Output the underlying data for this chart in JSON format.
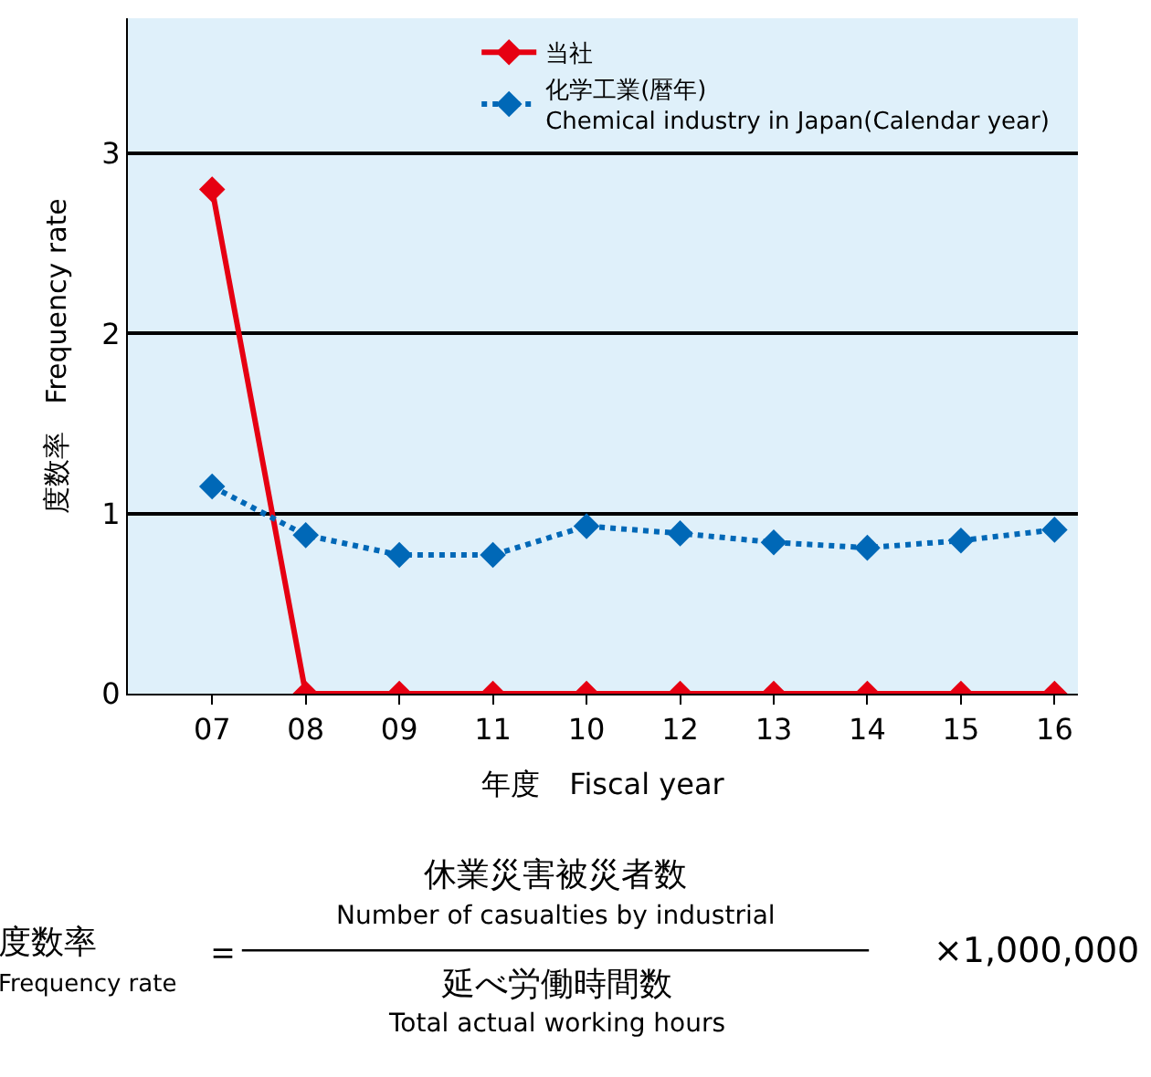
{
  "chart_data": {
    "type": "line",
    "xlabel": "年度　Fiscal year",
    "ylabel": "度数率　Frequency rate",
    "categories": [
      "07",
      "08",
      "09",
      "11",
      "10",
      "12",
      "13",
      "14",
      "15",
      "16"
    ],
    "series": [
      {
        "name": "当社",
        "color": "#e60012",
        "values": [
          2.8,
          0,
          0,
          0,
          0,
          0,
          0,
          0,
          0,
          0
        ],
        "line_style": "solid"
      },
      {
        "name": "化学工業(暦年)\nChemical industry in Japan(Calendar year)",
        "color": "#0068b7",
        "values": [
          1.15,
          0.88,
          0.77,
          0.77,
          0.93,
          0.89,
          0.84,
          0.81,
          0.85,
          0.91
        ],
        "line_style": "dotted"
      }
    ],
    "ylim": [
      0,
      3.75
    ],
    "yticks": [
      0,
      1,
      2,
      3
    ],
    "grid": "y",
    "legend": "top right",
    "marker": "diamond",
    "annotations": [
      "度数率",
      "Frequency rate",
      "＝",
      "休業災害被災者数",
      "Number of casualties by industrial",
      "延べ労働時間数",
      "Total actual working hours",
      "×1,000,000"
    ]
  }
}
